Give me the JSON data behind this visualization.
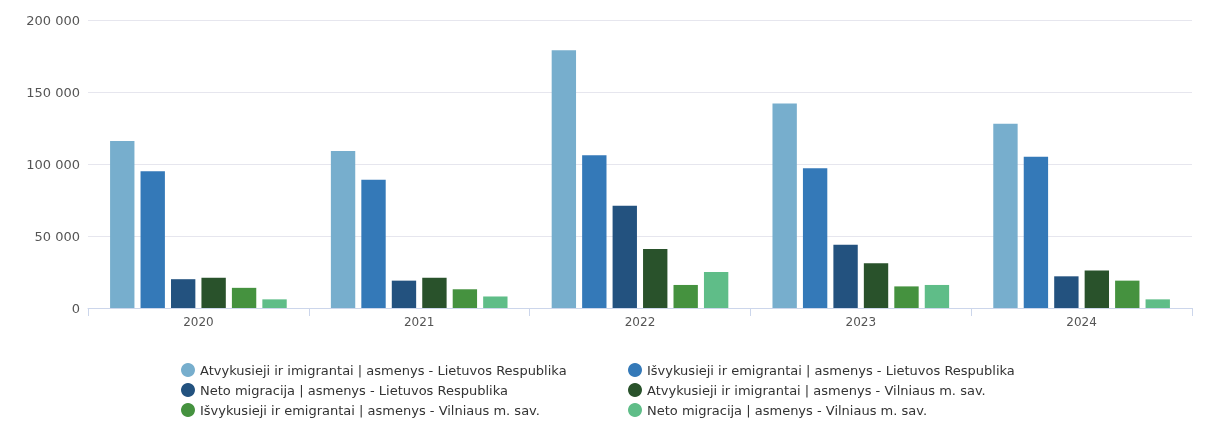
{
  "chart_data": {
    "type": "bar",
    "categories": [
      "2020",
      "2021",
      "2022",
      "2023",
      "2024"
    ],
    "series": [
      {
        "name": "Atvykusieji ir imigrantai | asmenys - Lietuvos Respublika",
        "color": "#77aecd",
        "values": [
          116000,
          109000,
          179000,
          142000,
          128000
        ]
      },
      {
        "name": "Išvykusieji ir emigrantai | asmenys - Lietuvos Respublika",
        "color": "#3479b8",
        "values": [
          95000,
          89000,
          106000,
          97000,
          105000
        ]
      },
      {
        "name": "Neto migracija | asmenys - Lietuvos Respublika",
        "color": "#23527f",
        "values": [
          20000,
          19000,
          71000,
          44000,
          22000
        ]
      },
      {
        "name": "Atvykusieji ir imigrantai | asmenys - Vilniaus m. sav.",
        "color": "#29522b",
        "values": [
          21000,
          21000,
          41000,
          31000,
          26000
        ]
      },
      {
        "name": "Išvykusieji ir emigrantai | asmenys - Vilniaus m. sav.",
        "color": "#45923f",
        "values": [
          14000,
          13000,
          16000,
          15000,
          19000
        ]
      },
      {
        "name": "Neto migracija | asmenys - Vilniaus m. sav.",
        "color": "#5fbd88",
        "values": [
          6000,
          8000,
          25000,
          16000,
          6000
        ]
      }
    ],
    "ylim": [
      0,
      200000
    ],
    "yticks": [
      {
        "value": 0,
        "label": "0"
      },
      {
        "value": 50000,
        "label": "50 000"
      },
      {
        "value": 100000,
        "label": "100 000"
      },
      {
        "value": 150000,
        "label": "150 000"
      },
      {
        "value": 200000,
        "label": "200 000"
      }
    ],
    "grid": "y",
    "legend": "bottom"
  }
}
